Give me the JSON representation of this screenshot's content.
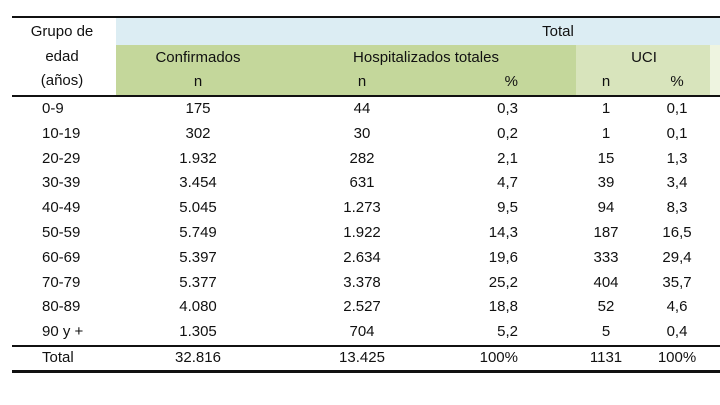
{
  "header": {
    "age_group_label": [
      "Grupo de",
      "edad",
      "(años)"
    ],
    "total_label": "Total",
    "confirmed_label": "Confirmados",
    "hospitalized_label": "Hospitalizados totales",
    "icu_label": "UCI",
    "sub_confirmed": "n",
    "sub_hosp_n": "n",
    "sub_hosp_pct": "%",
    "sub_icu_n": "n",
    "sub_icu_pct": "%"
  },
  "colors": {
    "total_band": "#dcedf3",
    "green_band": "#c4d79b",
    "icu_band": "#d8e4bc"
  },
  "rows": [
    {
      "age": "0-9",
      "confirmed": "175",
      "hosp_n": "44",
      "hosp_pct": "0,3",
      "icu_n": "1",
      "icu_pct": "0,1"
    },
    {
      "age": "10-19",
      "confirmed": "302",
      "hosp_n": "30",
      "hosp_pct": "0,2",
      "icu_n": "1",
      "icu_pct": "0,1"
    },
    {
      "age": "20-29",
      "confirmed": "1.932",
      "hosp_n": "282",
      "hosp_pct": "2,1",
      "icu_n": "15",
      "icu_pct": "1,3"
    },
    {
      "age": "30-39",
      "confirmed": "3.454",
      "hosp_n": "631",
      "hosp_pct": "4,7",
      "icu_n": "39",
      "icu_pct": "3,4"
    },
    {
      "age": "40-49",
      "confirmed": "5.045",
      "hosp_n": "1.273",
      "hosp_pct": "9,5",
      "icu_n": "94",
      "icu_pct": "8,3"
    },
    {
      "age": "50-59",
      "confirmed": "5.749",
      "hosp_n": "1.922",
      "hosp_pct": "14,3",
      "icu_n": "187",
      "icu_pct": "16,5"
    },
    {
      "age": "60-69",
      "confirmed": "5.397",
      "hosp_n": "2.634",
      "hosp_pct": "19,6",
      "icu_n": "333",
      "icu_pct": "29,4"
    },
    {
      "age": "70-79",
      "confirmed": "5.377",
      "hosp_n": "3.378",
      "hosp_pct": "25,2",
      "icu_n": "404",
      "icu_pct": "35,7"
    },
    {
      "age": "80-89",
      "confirmed": "4.080",
      "hosp_n": "2.527",
      "hosp_pct": "18,8",
      "icu_n": "52",
      "icu_pct": "4,6"
    },
    {
      "age": "90 y +",
      "confirmed": "1.305",
      "hosp_n": "704",
      "hosp_pct": "5,2",
      "icu_n": "5",
      "icu_pct": "0,4"
    }
  ],
  "total_row": {
    "age": "Total",
    "confirmed": "32.816",
    "hosp_n": "13.425",
    "hosp_pct": "100%",
    "icu_n": "1131",
    "icu_pct": "100%"
  }
}
